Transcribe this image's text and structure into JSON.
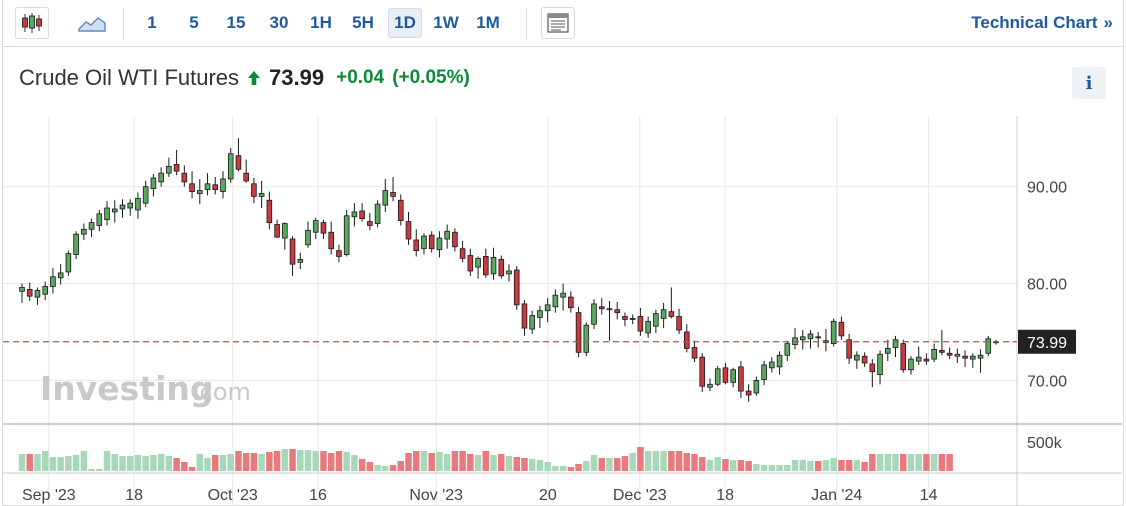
{
  "toolbar": {
    "timeframes": [
      "1",
      "5",
      "15",
      "30",
      "1H",
      "5H",
      "1D",
      "1W",
      "1M"
    ],
    "active_timeframe": "1D",
    "tech_link_label": "Technical Chart",
    "tech_link_arrow": "»"
  },
  "header": {
    "title": "Crude Oil WTI Futures",
    "price": "73.99",
    "change": "+0.04",
    "change_pct": "(+0.05%)",
    "info_label": "i"
  },
  "watermark": {
    "brand": "Investing",
    "suffix": ".com"
  },
  "colors": {
    "up_body": "#58a85f",
    "down_body": "#c63b40",
    "candle_outline": "#1a1a1a",
    "volume_up": "#a8d8b9",
    "volume_down": "#e87a7e",
    "price_line": "#c74b4f",
    "accent": "#1e5a9c",
    "change_positive": "#0a8a3a"
  },
  "chart_data": {
    "type": "candlestick",
    "last_price_label": "73.99",
    "last_price": 73.99,
    "y_ticks": [
      90,
      80,
      70
    ],
    "y_tick_labels": [
      "90.00",
      "80.00",
      "70.00"
    ],
    "y_range": [
      65.5,
      97.3
    ],
    "volume_tick_label": "500k",
    "x_tick_labels": [
      "Sep '23",
      "18",
      "Oct '23",
      "16",
      "Nov '23",
      "20",
      "Dec '23",
      "18",
      "Jan '24",
      "14"
    ],
    "x_tick_days": [
      5,
      18,
      33,
      46,
      64,
      81,
      95,
      108,
      125,
      139
    ],
    "x_day_range": [
      0,
      152
    ],
    "candles": [
      {
        "o": 79.2,
        "h": 80.0,
        "l": 78.0,
        "c": 79.6
      },
      {
        "o": 79.4,
        "h": 80.1,
        "l": 78.2,
        "c": 78.7
      },
      {
        "o": 78.6,
        "h": 79.6,
        "l": 77.8,
        "c": 79.3
      },
      {
        "o": 78.9,
        "h": 80.2,
        "l": 78.3,
        "c": 79.7
      },
      {
        "o": 79.7,
        "h": 81.6,
        "l": 79.0,
        "c": 80.7
      },
      {
        "o": 80.6,
        "h": 82.0,
        "l": 79.9,
        "c": 81.1
      },
      {
        "o": 81.2,
        "h": 83.4,
        "l": 80.8,
        "c": 83.1
      },
      {
        "o": 83.0,
        "h": 85.4,
        "l": 82.5,
        "c": 85.1
      },
      {
        "o": 85.1,
        "h": 86.2,
        "l": 84.5,
        "c": 85.6
      },
      {
        "o": 85.6,
        "h": 86.7,
        "l": 84.8,
        "c": 86.3
      },
      {
        "o": 86.0,
        "h": 87.6,
        "l": 85.4,
        "c": 87.2
      },
      {
        "o": 86.6,
        "h": 88.5,
        "l": 86.0,
        "c": 87.8
      },
      {
        "o": 87.4,
        "h": 88.6,
        "l": 86.3,
        "c": 87.7
      },
      {
        "o": 87.7,
        "h": 88.7,
        "l": 86.8,
        "c": 88.1
      },
      {
        "o": 87.8,
        "h": 88.7,
        "l": 87.0,
        "c": 88.3
      },
      {
        "o": 87.6,
        "h": 89.4,
        "l": 86.7,
        "c": 88.8
      },
      {
        "o": 88.3,
        "h": 90.6,
        "l": 87.9,
        "c": 90.0
      },
      {
        "o": 89.8,
        "h": 91.3,
        "l": 89.0,
        "c": 90.9
      },
      {
        "o": 90.5,
        "h": 92.0,
        "l": 90.0,
        "c": 91.4
      },
      {
        "o": 91.4,
        "h": 93.0,
        "l": 91.0,
        "c": 92.1
      },
      {
        "o": 92.3,
        "h": 93.8,
        "l": 91.2,
        "c": 91.6
      },
      {
        "o": 91.4,
        "h": 92.2,
        "l": 90.0,
        "c": 90.5
      },
      {
        "o": 90.3,
        "h": 91.6,
        "l": 88.8,
        "c": 89.5
      },
      {
        "o": 89.3,
        "h": 90.8,
        "l": 88.2,
        "c": 89.6
      },
      {
        "o": 89.7,
        "h": 91.4,
        "l": 89.1,
        "c": 90.3
      },
      {
        "o": 90.2,
        "h": 91.0,
        "l": 89.2,
        "c": 89.7
      },
      {
        "o": 89.5,
        "h": 91.6,
        "l": 88.8,
        "c": 90.8
      },
      {
        "o": 90.8,
        "h": 94.0,
        "l": 90.4,
        "c": 93.4
      },
      {
        "o": 93.2,
        "h": 95.0,
        "l": 91.6,
        "c": 91.8
      },
      {
        "o": 91.4,
        "h": 92.8,
        "l": 90.4,
        "c": 90.6
      },
      {
        "o": 90.3,
        "h": 90.9,
        "l": 88.3,
        "c": 89.0
      },
      {
        "o": 89.0,
        "h": 90.6,
        "l": 87.8,
        "c": 89.3
      },
      {
        "o": 88.6,
        "h": 89.5,
        "l": 85.6,
        "c": 86.3
      },
      {
        "o": 86.1,
        "h": 86.6,
        "l": 84.7,
        "c": 84.8
      },
      {
        "o": 84.7,
        "h": 86.3,
        "l": 83.5,
        "c": 86.2
      },
      {
        "o": 84.6,
        "h": 84.9,
        "l": 80.8,
        "c": 82.0
      },
      {
        "o": 82.2,
        "h": 83.2,
        "l": 81.5,
        "c": 82.5
      },
      {
        "o": 84.0,
        "h": 86.4,
        "l": 83.7,
        "c": 85.5
      },
      {
        "o": 85.3,
        "h": 86.8,
        "l": 84.6,
        "c": 86.5
      },
      {
        "o": 86.3,
        "h": 86.6,
        "l": 84.6,
        "c": 85.2
      },
      {
        "o": 85.3,
        "h": 86.4,
        "l": 83.0,
        "c": 83.6
      },
      {
        "o": 83.4,
        "h": 84.0,
        "l": 82.2,
        "c": 82.8
      },
      {
        "o": 83.0,
        "h": 87.6,
        "l": 82.8,
        "c": 87.0
      },
      {
        "o": 86.9,
        "h": 88.3,
        "l": 85.9,
        "c": 87.4
      },
      {
        "o": 87.5,
        "h": 88.3,
        "l": 86.4,
        "c": 86.7
      },
      {
        "o": 86.4,
        "h": 87.3,
        "l": 85.5,
        "c": 86.0
      },
      {
        "o": 86.2,
        "h": 88.6,
        "l": 85.8,
        "c": 88.2
      },
      {
        "o": 88.1,
        "h": 90.8,
        "l": 87.4,
        "c": 89.6
      },
      {
        "o": 89.4,
        "h": 91.0,
        "l": 88.5,
        "c": 89.0
      },
      {
        "o": 88.6,
        "h": 89.2,
        "l": 86.0,
        "c": 86.5
      },
      {
        "o": 86.4,
        "h": 87.4,
        "l": 84.0,
        "c": 84.6
      },
      {
        "o": 84.5,
        "h": 85.6,
        "l": 82.8,
        "c": 83.4
      },
      {
        "o": 83.6,
        "h": 85.2,
        "l": 83.0,
        "c": 84.9
      },
      {
        "o": 85.0,
        "h": 85.4,
        "l": 83.2,
        "c": 83.6
      },
      {
        "o": 83.5,
        "h": 85.4,
        "l": 82.7,
        "c": 84.7
      },
      {
        "o": 84.6,
        "h": 86.1,
        "l": 83.6,
        "c": 85.4
      },
      {
        "o": 85.3,
        "h": 85.7,
        "l": 83.3,
        "c": 83.8
      },
      {
        "o": 83.6,
        "h": 84.4,
        "l": 82.2,
        "c": 82.6
      },
      {
        "o": 82.9,
        "h": 83.6,
        "l": 80.8,
        "c": 81.3
      },
      {
        "o": 81.7,
        "h": 82.8,
        "l": 80.5,
        "c": 82.6
      },
      {
        "o": 82.8,
        "h": 83.6,
        "l": 80.6,
        "c": 80.9
      },
      {
        "o": 81.0,
        "h": 83.7,
        "l": 80.4,
        "c": 82.7
      },
      {
        "o": 82.5,
        "h": 82.9,
        "l": 80.5,
        "c": 80.8
      },
      {
        "o": 81.0,
        "h": 82.0,
        "l": 80.2,
        "c": 81.3
      },
      {
        "o": 81.4,
        "h": 81.8,
        "l": 77.3,
        "c": 77.8
      },
      {
        "o": 77.9,
        "h": 78.3,
        "l": 74.6,
        "c": 75.4
      },
      {
        "o": 75.3,
        "h": 77.2,
        "l": 74.8,
        "c": 76.7
      },
      {
        "o": 76.5,
        "h": 77.7,
        "l": 75.4,
        "c": 77.2
      },
      {
        "o": 77.2,
        "h": 78.5,
        "l": 76.0,
        "c": 77.8
      },
      {
        "o": 77.6,
        "h": 79.4,
        "l": 77.0,
        "c": 78.8
      },
      {
        "o": 78.6,
        "h": 80.0,
        "l": 77.2,
        "c": 79.0
      },
      {
        "o": 78.6,
        "h": 79.2,
        "l": 77.0,
        "c": 77.5
      },
      {
        "o": 77.0,
        "h": 77.6,
        "l": 72.4,
        "c": 72.9
      },
      {
        "o": 72.9,
        "h": 76.0,
        "l": 72.5,
        "c": 75.7
      },
      {
        "o": 75.8,
        "h": 78.4,
        "l": 75.3,
        "c": 77.9
      },
      {
        "o": 77.6,
        "h": 78.5,
        "l": 76.8,
        "c": 77.4
      },
      {
        "o": 77.4,
        "h": 78.2,
        "l": 74.1,
        "c": 77.4
      },
      {
        "o": 77.3,
        "h": 78.1,
        "l": 76.3,
        "c": 77.0
      },
      {
        "o": 76.6,
        "h": 77.0,
        "l": 75.6,
        "c": 76.3
      },
      {
        "o": 76.4,
        "h": 76.8,
        "l": 75.8,
        "c": 76.4
      },
      {
        "o": 76.6,
        "h": 77.5,
        "l": 74.6,
        "c": 75.1
      },
      {
        "o": 74.9,
        "h": 76.6,
        "l": 74.4,
        "c": 76.1
      },
      {
        "o": 75.6,
        "h": 77.3,
        "l": 74.9,
        "c": 76.9
      },
      {
        "o": 76.4,
        "h": 78.0,
        "l": 75.4,
        "c": 77.3
      },
      {
        "o": 77.1,
        "h": 79.6,
        "l": 76.4,
        "c": 76.6
      },
      {
        "o": 76.6,
        "h": 77.4,
        "l": 74.8,
        "c": 75.2
      },
      {
        "o": 75.0,
        "h": 75.8,
        "l": 72.9,
        "c": 73.3
      },
      {
        "o": 73.4,
        "h": 74.1,
        "l": 71.9,
        "c": 72.3
      },
      {
        "o": 72.4,
        "h": 72.8,
        "l": 68.8,
        "c": 69.4
      },
      {
        "o": 69.3,
        "h": 70.2,
        "l": 68.9,
        "c": 69.6
      },
      {
        "o": 69.6,
        "h": 71.5,
        "l": 69.4,
        "c": 71.2
      },
      {
        "o": 71.3,
        "h": 71.8,
        "l": 69.6,
        "c": 69.8
      },
      {
        "o": 69.8,
        "h": 71.3,
        "l": 69.3,
        "c": 71.1
      },
      {
        "o": 71.4,
        "h": 72.0,
        "l": 68.2,
        "c": 68.9
      },
      {
        "o": 68.9,
        "h": 69.6,
        "l": 67.8,
        "c": 68.5
      },
      {
        "o": 68.7,
        "h": 70.4,
        "l": 68.4,
        "c": 70.0
      },
      {
        "o": 70.1,
        "h": 72.0,
        "l": 69.5,
        "c": 71.6
      },
      {
        "o": 71.3,
        "h": 72.4,
        "l": 70.8,
        "c": 71.9
      },
      {
        "o": 71.4,
        "h": 73.0,
        "l": 70.6,
        "c": 72.6
      },
      {
        "o": 72.6,
        "h": 74.1,
        "l": 72.0,
        "c": 73.8
      },
      {
        "o": 73.7,
        "h": 75.4,
        "l": 73.2,
        "c": 74.4
      },
      {
        "o": 74.2,
        "h": 75.2,
        "l": 73.2,
        "c": 74.5
      },
      {
        "o": 74.3,
        "h": 75.2,
        "l": 73.3,
        "c": 74.8
      },
      {
        "o": 74.5,
        "h": 75.0,
        "l": 73.4,
        "c": 74.4
      },
      {
        "o": 73.9,
        "h": 75.3,
        "l": 73.0,
        "c": 74.1
      },
      {
        "o": 73.8,
        "h": 76.4,
        "l": 73.5,
        "c": 76.1
      },
      {
        "o": 76.0,
        "h": 76.6,
        "l": 74.2,
        "c": 74.6
      },
      {
        "o": 74.2,
        "h": 74.8,
        "l": 71.7,
        "c": 72.3
      },
      {
        "o": 72.1,
        "h": 73.0,
        "l": 71.2,
        "c": 72.6
      },
      {
        "o": 72.5,
        "h": 72.9,
        "l": 71.4,
        "c": 71.8
      },
      {
        "o": 71.7,
        "h": 72.2,
        "l": 69.3,
        "c": 70.9
      },
      {
        "o": 70.6,
        "h": 73.1,
        "l": 69.6,
        "c": 72.7
      },
      {
        "o": 72.8,
        "h": 74.2,
        "l": 72.0,
        "c": 73.3
      },
      {
        "o": 73.4,
        "h": 74.6,
        "l": 72.4,
        "c": 74.2
      },
      {
        "o": 73.8,
        "h": 74.2,
        "l": 70.8,
        "c": 71.1
      },
      {
        "o": 71.1,
        "h": 72.5,
        "l": 70.6,
        "c": 72.2
      },
      {
        "o": 72.0,
        "h": 73.5,
        "l": 71.6,
        "c": 72.4
      },
      {
        "o": 72.2,
        "h": 72.8,
        "l": 71.6,
        "c": 72.0
      },
      {
        "o": 72.2,
        "h": 73.8,
        "l": 71.9,
        "c": 73.2
      },
      {
        "o": 73.1,
        "h": 75.2,
        "l": 72.6,
        "c": 72.9
      },
      {
        "o": 72.8,
        "h": 73.4,
        "l": 72.2,
        "c": 72.6
      },
      {
        "o": 72.5,
        "h": 73.3,
        "l": 71.8,
        "c": 72.7
      },
      {
        "o": 72.5,
        "h": 73.1,
        "l": 71.4,
        "c": 72.3
      },
      {
        "o": 72.2,
        "h": 72.8,
        "l": 71.3,
        "c": 72.5
      },
      {
        "o": 72.3,
        "h": 73.2,
        "l": 70.8,
        "c": 72.6
      },
      {
        "o": 72.8,
        "h": 74.6,
        "l": 72.5,
        "c": 74.3
      },
      {
        "o": 73.9,
        "h": 74.2,
        "l": 73.7,
        "c": 73.99
      }
    ],
    "volume_levels": [
      0.85,
      0.85,
      0.85,
      1.0,
      0.7,
      0.7,
      0.75,
      0.8,
      1.0,
      0.1,
      0.1,
      1.0,
      0.85,
      0.75,
      0.75,
      0.8,
      0.75,
      0.8,
      0.85,
      0.75,
      0.65,
      0.45,
      0.2,
      0.85,
      0.65,
      0.8,
      0.8,
      0.85,
      1.0,
      0.9,
      0.9,
      0.85,
      0.95,
      1.0,
      1.1,
      1.1,
      1.05,
      1.05,
      1.0,
      1.0,
      0.9,
      1.0,
      0.95,
      0.8,
      0.6,
      0.45,
      0.3,
      0.25,
      0.3,
      0.5,
      0.9,
      1.0,
      1.0,
      0.9,
      0.95,
      0.85,
      1.0,
      1.0,
      0.85,
      0.8,
      1.0,
      0.8,
      0.85,
      0.75,
      0.7,
      0.65,
      0.6,
      0.55,
      0.45,
      0.25,
      0.25,
      0.2,
      0.35,
      0.5,
      0.8,
      0.65,
      0.65,
      0.65,
      0.75,
      0.9,
      1.2,
      1.0,
      1.0,
      1.0,
      1.0,
      1.0,
      0.9,
      0.85,
      0.7,
      0.55,
      0.7,
      0.6,
      0.55,
      0.55,
      0.5,
      0.35,
      0.3,
      0.3,
      0.3,
      0.3,
      0.55,
      0.55,
      0.5,
      0.5,
      0.55,
      0.65,
      0.55,
      0.55,
      0.55,
      0.45,
      0.85,
      0.85,
      0.85,
      0.85,
      0.85,
      0.85,
      0.85,
      0.85,
      0.85,
      0.85,
      0.85
    ]
  }
}
